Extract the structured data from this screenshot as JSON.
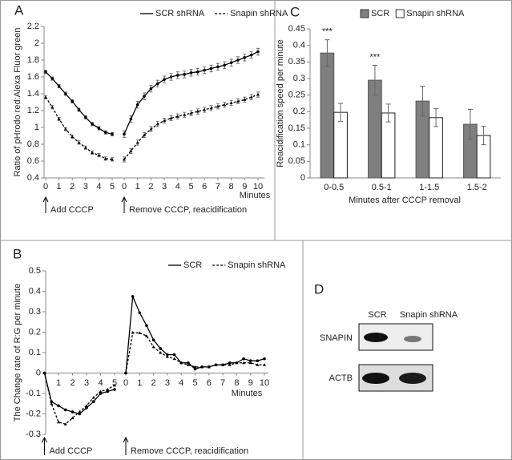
{
  "chart_data": [
    {
      "type": "line",
      "label": "A",
      "ylabel": "Ratio of pHrodo red:Alexa Fluor green",
      "xlabel": "Minutes",
      "ylim": [
        0.4,
        2.2
      ],
      "yticks": [
        0.4,
        0.6,
        0.8,
        1,
        1.2,
        1.4,
        1.6,
        1.8,
        2,
        2.2
      ],
      "legend": "top-right",
      "segments": [
        {
          "xlim": [
            0,
            5
          ],
          "xticks": [
            0,
            1,
            2,
            3,
            4,
            5
          ],
          "x": [
            0,
            0.5,
            1,
            1.5,
            2,
            2.5,
            3,
            3.5,
            4,
            4.5,
            5
          ],
          "annotation": "Add CCCP"
        },
        {
          "xlim": [
            0,
            10
          ],
          "xticks": [
            0,
            1,
            2,
            3,
            4,
            5,
            6,
            7,
            8,
            9,
            10
          ],
          "x": [
            0,
            0.5,
            1,
            1.5,
            2,
            2.5,
            3,
            3.5,
            4,
            4.5,
            5,
            5.5,
            6,
            6.5,
            7,
            7.5,
            8,
            8.5,
            9,
            9.5,
            10
          ],
          "annotation": "Remove CCCP, reacidification"
        }
      ],
      "series": [
        {
          "name": "SCR shRNA",
          "color": "#000000",
          "line_style": "solid",
          "values": [
            [
              1.66,
              1.58,
              1.49,
              1.4,
              1.31,
              1.21,
              1.12,
              1.04,
              0.99,
              0.94,
              0.92
            ],
            [
              0.92,
              1.1,
              1.27,
              1.37,
              1.46,
              1.52,
              1.57,
              1.6,
              1.62,
              1.63,
              1.65,
              1.66,
              1.68,
              1.7,
              1.72,
              1.74,
              1.77,
              1.8,
              1.83,
              1.86,
              1.9
            ]
          ],
          "errors": [
            [
              0.02,
              0.02,
              0.02,
              0.02,
              0.02,
              0.02,
              0.02,
              0.02,
              0.02,
              0.02,
              0.02
            ],
            [
              0.04,
              0.04,
              0.04,
              0.04,
              0.04,
              0.04,
              0.04,
              0.04,
              0.04,
              0.04,
              0.04,
              0.04,
              0.04,
              0.04,
              0.04,
              0.04,
              0.04,
              0.04,
              0.04,
              0.04,
              0.04
            ]
          ]
        },
        {
          "name": "Snapin shRNA",
          "color": "#000000",
          "line_style": "dashed",
          "values": [
            [
              1.36,
              1.24,
              1.1,
              0.98,
              0.89,
              0.82,
              0.76,
              0.7,
              0.67,
              0.63,
              0.62
            ],
            [
              0.62,
              0.72,
              0.82,
              0.91,
              0.98,
              1.04,
              1.08,
              1.11,
              1.13,
              1.15,
              1.17,
              1.19,
              1.21,
              1.23,
              1.25,
              1.27,
              1.29,
              1.31,
              1.33,
              1.36,
              1.39
            ]
          ],
          "errors": [
            [
              0.02,
              0.02,
              0.02,
              0.02,
              0.02,
              0.02,
              0.02,
              0.02,
              0.02,
              0.02,
              0.02
            ],
            [
              0.03,
              0.03,
              0.03,
              0.03,
              0.03,
              0.03,
              0.03,
              0.03,
              0.03,
              0.03,
              0.03,
              0.03,
              0.03,
              0.03,
              0.03,
              0.03,
              0.03,
              0.03,
              0.03,
              0.03,
              0.03
            ]
          ]
        }
      ]
    },
    {
      "type": "bar",
      "label": "C",
      "ylabel": "Reacidification speed per minute",
      "xlabel": "Minutes after CCCP removal",
      "categories": [
        "0-0.5",
        "0.5-1",
        "1-1.5",
        "1.5-2"
      ],
      "ylim": [
        0,
        0.45
      ],
      "yticks": [
        0,
        0.05,
        0.1,
        0.15,
        0.2,
        0.25,
        0.3,
        0.35,
        0.4,
        0.45
      ],
      "legend": "top",
      "series": [
        {
          "name": "SCR",
          "color": "#7f7f7f",
          "values": [
            0.377,
            0.295,
            0.232,
            0.162
          ],
          "errors": [
            0.04,
            0.045,
            0.045,
            0.045
          ]
        },
        {
          "name": "Snapin shRNA",
          "color": "#ffffff",
          "values": [
            0.198,
            0.196,
            0.182,
            0.128
          ],
          "errors": [
            0.027,
            0.027,
            0.027,
            0.028
          ]
        }
      ],
      "annotations": [
        {
          "category": "0-0.5",
          "text": "***"
        },
        {
          "category": "0.5-1",
          "text": "***"
        }
      ]
    },
    {
      "type": "line",
      "label": "B",
      "ylabel": "The Change rate of R:G per minute",
      "xlabel": "Minutes",
      "ylim": [
        -0.3,
        0.5
      ],
      "yticks": [
        -0.3,
        -0.2,
        -0.1,
        0,
        0.1,
        0.2,
        0.3,
        0.4,
        0.5
      ],
      "legend": "top-right",
      "segments": [
        {
          "xlim": [
            0,
            5
          ],
          "xticks": [
            1,
            2,
            3,
            4,
            5
          ],
          "x": [
            0,
            0.5,
            1,
            1.5,
            2,
            2.5,
            3,
            3.5,
            4,
            4.5,
            5
          ],
          "annotation": "Add CCCP"
        },
        {
          "xlim": [
            0,
            10
          ],
          "xticks": [
            0,
            1,
            2,
            3,
            4,
            5,
            6,
            7,
            8,
            9,
            10
          ],
          "x": [
            0,
            0.5,
            1,
            1.5,
            2,
            2.5,
            3,
            3.5,
            4,
            4.5,
            5,
            5.5,
            6,
            6.5,
            7,
            7.5,
            8,
            8.5,
            9,
            9.5,
            10
          ],
          "annotation": "Remove CCCP, reacidification"
        }
      ],
      "series": [
        {
          "name": "SCR",
          "color": "#000000",
          "line_style": "solid",
          "values": [
            [
              0,
              -0.14,
              -0.16,
              -0.18,
              -0.19,
              -0.2,
              -0.17,
              -0.14,
              -0.1,
              -0.09,
              -0.08
            ],
            [
              0,
              0.375,
              0.295,
              0.232,
              0.162,
              0.12,
              0.09,
              0.09,
              0.05,
              0.05,
              0.02,
              0.03,
              0.03,
              0.04,
              0.04,
              0.05,
              0.05,
              0.07,
              0.06,
              0.06,
              0.07
            ]
          ]
        },
        {
          "name": "Snapin shRNA",
          "color": "#000000",
          "line_style": "dashed",
          "values": [
            [
              0,
              -0.15,
              -0.24,
              -0.25,
              -0.22,
              -0.19,
              -0.16,
              -0.12,
              -0.09,
              -0.08,
              -0.06
            ],
            [
              0,
              0.198,
              0.196,
              0.182,
              0.128,
              0.1,
              0.08,
              0.07,
              0.05,
              0.04,
              0.03,
              0.03,
              0.03,
              0.04,
              0.04,
              0.04,
              0.05,
              0.05,
              0.05,
              0.04,
              0.04
            ]
          ]
        }
      ]
    }
  ],
  "blot": {
    "label": "D",
    "columns": [
      "SCR",
      "Snapin shRNA"
    ],
    "rows": [
      "SNAPIN",
      "ACTB"
    ]
  }
}
